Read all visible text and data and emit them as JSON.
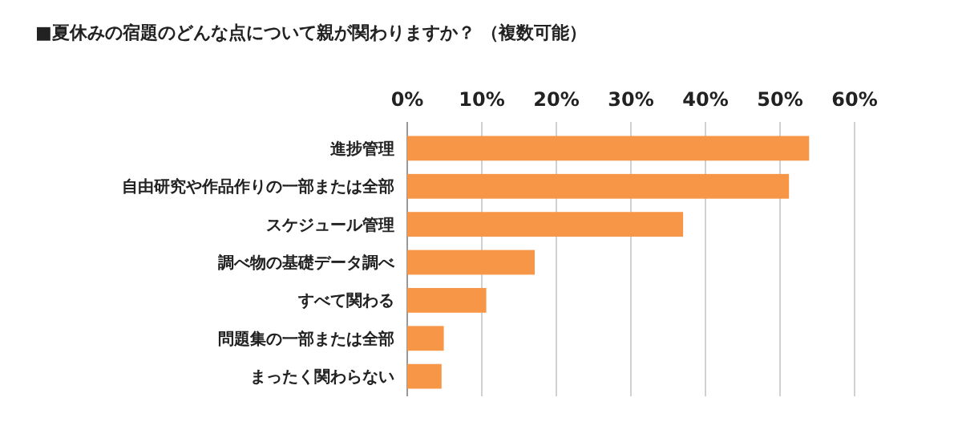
{
  "chart_data": {
    "type": "bar",
    "orientation": "horizontal",
    "title": "■夏休みの宿題のどんな点について親が関わりますか？ （複数可能）",
    "categories": [
      "進捗管理",
      "自由研究や作品作りの一部または全部",
      "スケジュール管理",
      "調べ物の基礎データ調べ",
      "すべて関わる",
      "問題集の一部または全部",
      "まったく関わらない"
    ],
    "values": [
      53.9,
      51.2,
      37.0,
      17.1,
      10.6,
      4.9,
      4.6
    ],
    "color": "#f79646",
    "xlim": [
      0,
      60
    ],
    "xticks": [
      {
        "value": 0,
        "label": "0%"
      },
      {
        "value": 10,
        "label": "10%"
      },
      {
        "value": 20,
        "label": "20%"
      },
      {
        "value": 30,
        "label": "30%"
      },
      {
        "value": 40,
        "label": "40%"
      },
      {
        "value": 50,
        "label": "50%"
      },
      {
        "value": 60,
        "label": "60%"
      }
    ],
    "grid": "x"
  }
}
